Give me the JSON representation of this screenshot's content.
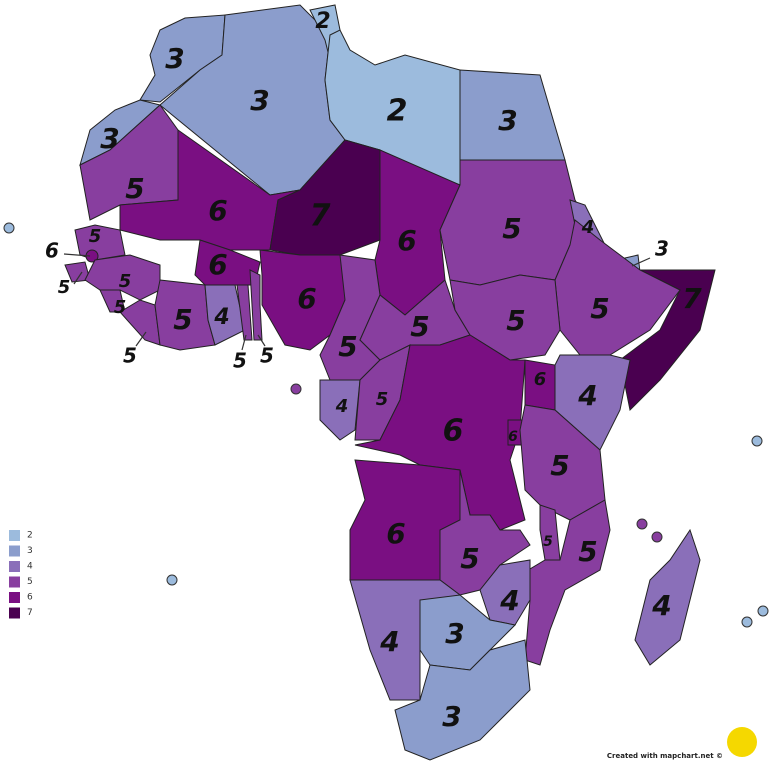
{
  "legend": {
    "items": [
      "2",
      "3",
      "4",
      "5",
      "6",
      "7"
    ],
    "colors": [
      "#9cbbdd",
      "#8b9dcc",
      "#8a6fb9",
      "#883e9f",
      "#7a0f82",
      "#4a0050"
    ]
  },
  "regions": [
    "3",
    "3",
    "2",
    "2",
    "3",
    "3",
    "5",
    "6",
    "7",
    "6",
    "5",
    "4",
    "3",
    "7",
    "5",
    "5",
    "6",
    "5",
    "5",
    "5",
    "6",
    "5",
    "5",
    "4",
    "5",
    "5",
    "6",
    "5",
    "5",
    "5",
    "4",
    "5",
    "6",
    "6",
    "4",
    "6",
    "5",
    "6",
    "5",
    "5",
    "5",
    "4",
    "4",
    "3",
    "3",
    "4"
  ],
  "credit": "Created with mapchart.net ©"
}
